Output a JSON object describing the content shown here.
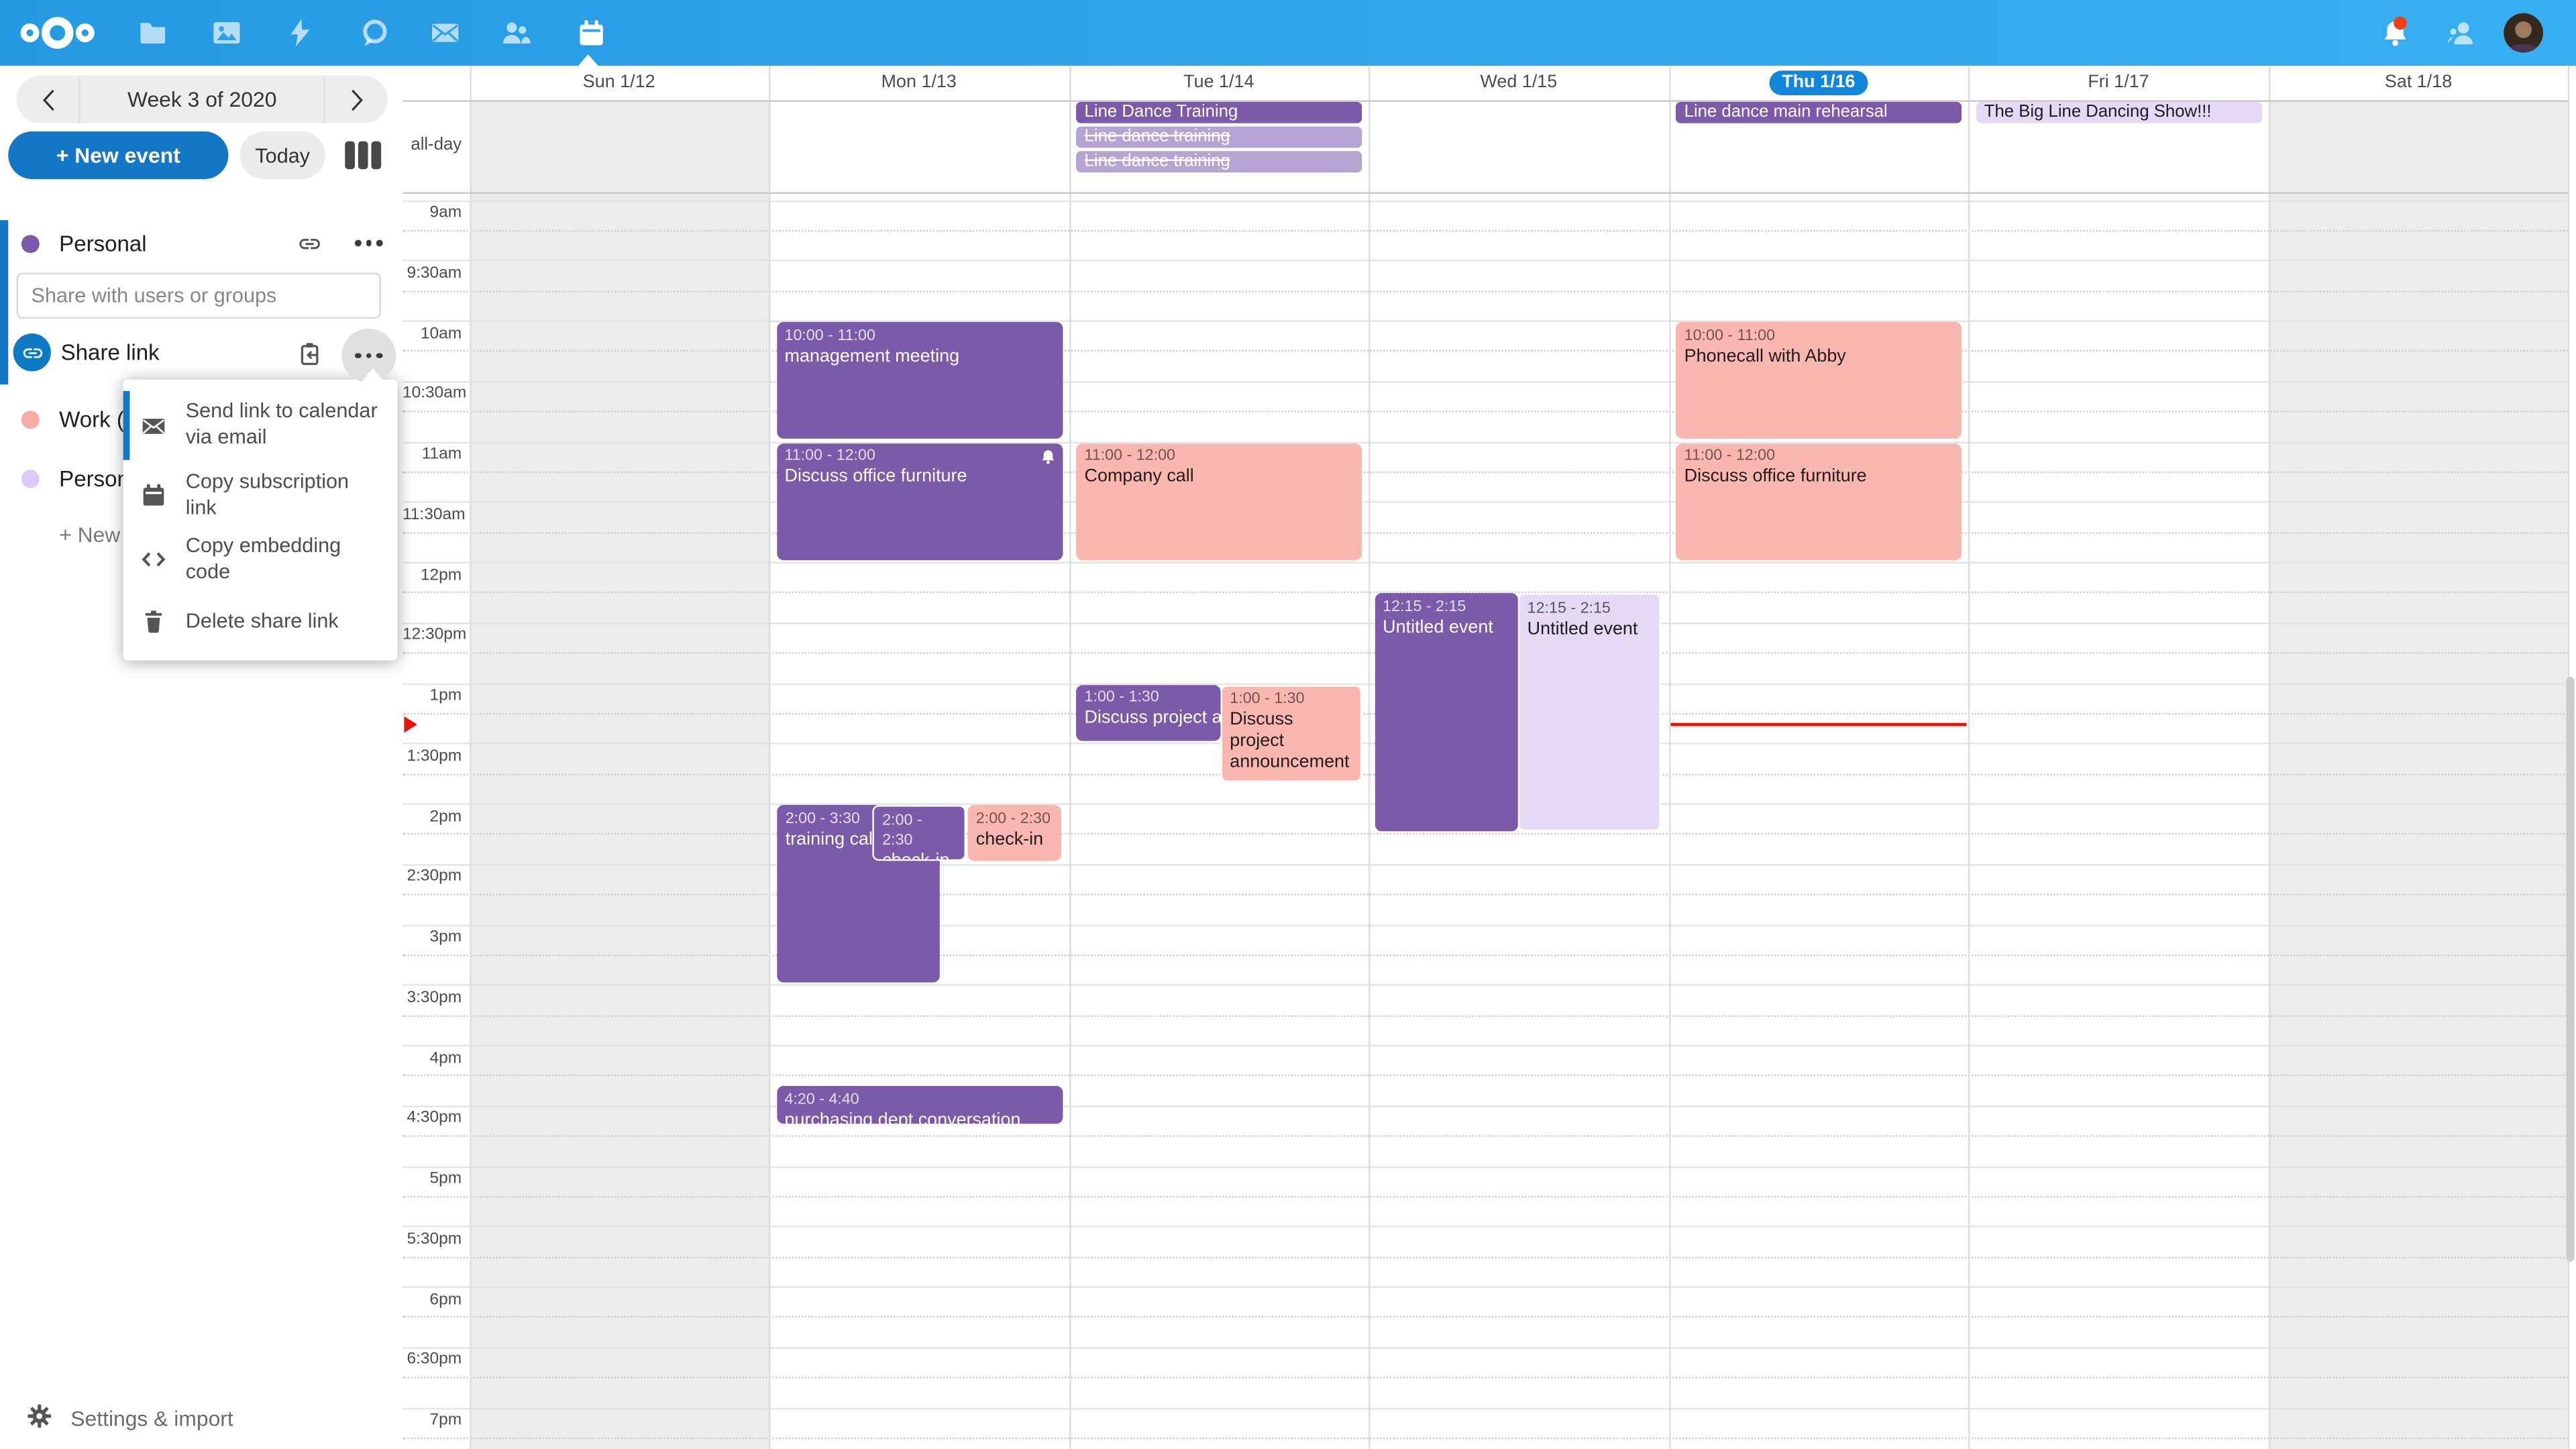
{
  "nav": {
    "apps": [
      "nextcloud-logo",
      "files",
      "photos",
      "activity",
      "talk",
      "mail",
      "contacts",
      "calendar"
    ],
    "active_app": "calendar",
    "notification_badge_color": "#f03f16"
  },
  "sidebar": {
    "week_nav": {
      "label": "Week 3 of 2020"
    },
    "new_event_label": "+ New event",
    "today_label": "Today",
    "share_placeholder": "Share with users or groups",
    "share_link_label": "Share link",
    "calendars": [
      {
        "name": "Personal",
        "color": "#7a5aa9"
      },
      {
        "name": "Work (C",
        "color": "#f6aba4"
      },
      {
        "name": "Persona",
        "color": "#dcc9f7"
      }
    ],
    "new_calendar_label": "+ New c",
    "settings_label": "Settings & import"
  },
  "share_menu": {
    "items": [
      {
        "icon": "email-icon",
        "label": "Send link to calendar via email",
        "active": true
      },
      {
        "icon": "calendar-icon",
        "label": "Copy subscription link"
      },
      {
        "icon": "code-icon",
        "label": "Copy embedding code"
      },
      {
        "icon": "delete-icon",
        "label": "Delete share link"
      }
    ]
  },
  "calendar": {
    "all_day_label": "all-day",
    "days": [
      {
        "label": "Sun 1/12",
        "weekend": true
      },
      {
        "label": "Mon 1/13"
      },
      {
        "label": "Tue 1/14"
      },
      {
        "label": "Wed 1/15"
      },
      {
        "label": "Thu 1/16",
        "today": true
      },
      {
        "label": "Fri 1/17"
      },
      {
        "label": "Sat 1/18",
        "weekend": true
      }
    ],
    "time_labels": [
      "9am",
      "9:30am",
      "10am",
      "10:30am",
      "11am",
      "11:30am",
      "12pm",
      "12:30pm",
      "1pm",
      "1:30pm",
      "2pm",
      "2:30pm",
      "3pm",
      "3:30pm",
      "4pm",
      "4:30pm",
      "5pm",
      "5:30pm",
      "6pm",
      "6:30pm",
      "7pm"
    ],
    "allday_events": [
      {
        "day": 2,
        "row": 0,
        "title": "Line Dance Training",
        "style": "purple"
      },
      {
        "day": 2,
        "row": 1,
        "title": "Line dance training",
        "style": "purple-light",
        "strikethrough": true
      },
      {
        "day": 2,
        "row": 2,
        "title": "Line dance training",
        "style": "purple-light",
        "strikethrough": true
      },
      {
        "day": 4,
        "row": 0,
        "title": "Line dance main rehearsal",
        "style": "purple"
      },
      {
        "day": 5,
        "row": 0,
        "title": "The Big Line Dancing Show!!!",
        "style": "lavender"
      }
    ],
    "events": [
      {
        "day": 1,
        "time": "10:00 - 11:00",
        "title": "management meeting",
        "style": "purple",
        "start": 10,
        "end": 11
      },
      {
        "day": 1,
        "time": "11:00 - 12:00",
        "title": "Discuss office furniture",
        "style": "purple",
        "start": 11,
        "end": 12,
        "alarm": true
      },
      {
        "day": 1,
        "time": "2:00 - 3:30",
        "title": "training call",
        "style": "purple",
        "start": 14,
        "end": 15.5,
        "xl": 5,
        "xw": 99
      },
      {
        "day": 1,
        "time": "2:00 - 2:30",
        "title": "check-in",
        "style": "purple",
        "start": 14,
        "end": 14.5,
        "xl": 63,
        "xw": 57,
        "bordered": true
      },
      {
        "day": 1,
        "time": "2:00 - 2:30",
        "title": "check-in",
        "style": "pink",
        "start": 14,
        "end": 14.5,
        "xl": 121,
        "xw": 57
      },
      {
        "day": 1,
        "time": "4:20 - 4:40",
        "title": "purchasing dept conversation",
        "style": "purple",
        "start": 16.333,
        "end": 16.667
      },
      {
        "day": 2,
        "time": "11:00 - 12:00",
        "title": "Company call",
        "style": "pink",
        "start": 11,
        "end": 12
      },
      {
        "day": 2,
        "time": "1:00 - 1:30",
        "title": "Discuss project ann",
        "style": "purple",
        "start": 13,
        "end": 13.5,
        "xl": 4.5,
        "xw": 88,
        "nowrap": true
      },
      {
        "day": 2,
        "time": "1:00 - 1:30",
        "title": "Discuss project announcement",
        "style": "pink",
        "start": 13,
        "end": 13.5,
        "xl": 92,
        "xw": 86.5,
        "bordered": true,
        "hpx": 59
      },
      {
        "day": 3,
        "time": "12:15 - 2:15",
        "title": "Untitled event",
        "style": "purple",
        "start": 12.25,
        "end": 14.25,
        "xl": 3.5,
        "xw": 87
      },
      {
        "day": 3,
        "time": "12:15 - 2:15",
        "title": "Untitled event",
        "style": "lavender",
        "start": 12.25,
        "end": 14.25,
        "xl": 90.5,
        "xw": 87,
        "bordered": true
      },
      {
        "day": 4,
        "time": "10:00 - 11:00",
        "title": "Phonecall with Abby",
        "style": "pink",
        "start": 10,
        "end": 11
      },
      {
        "day": 4,
        "time": "11:00 - 12:00",
        "title": "Discuss office furniture",
        "style": "pink",
        "start": 11,
        "end": 12
      }
    ],
    "now_indicator": {
      "day": 4,
      "position_hour": 13.35,
      "color": "#e8130a"
    }
  }
}
